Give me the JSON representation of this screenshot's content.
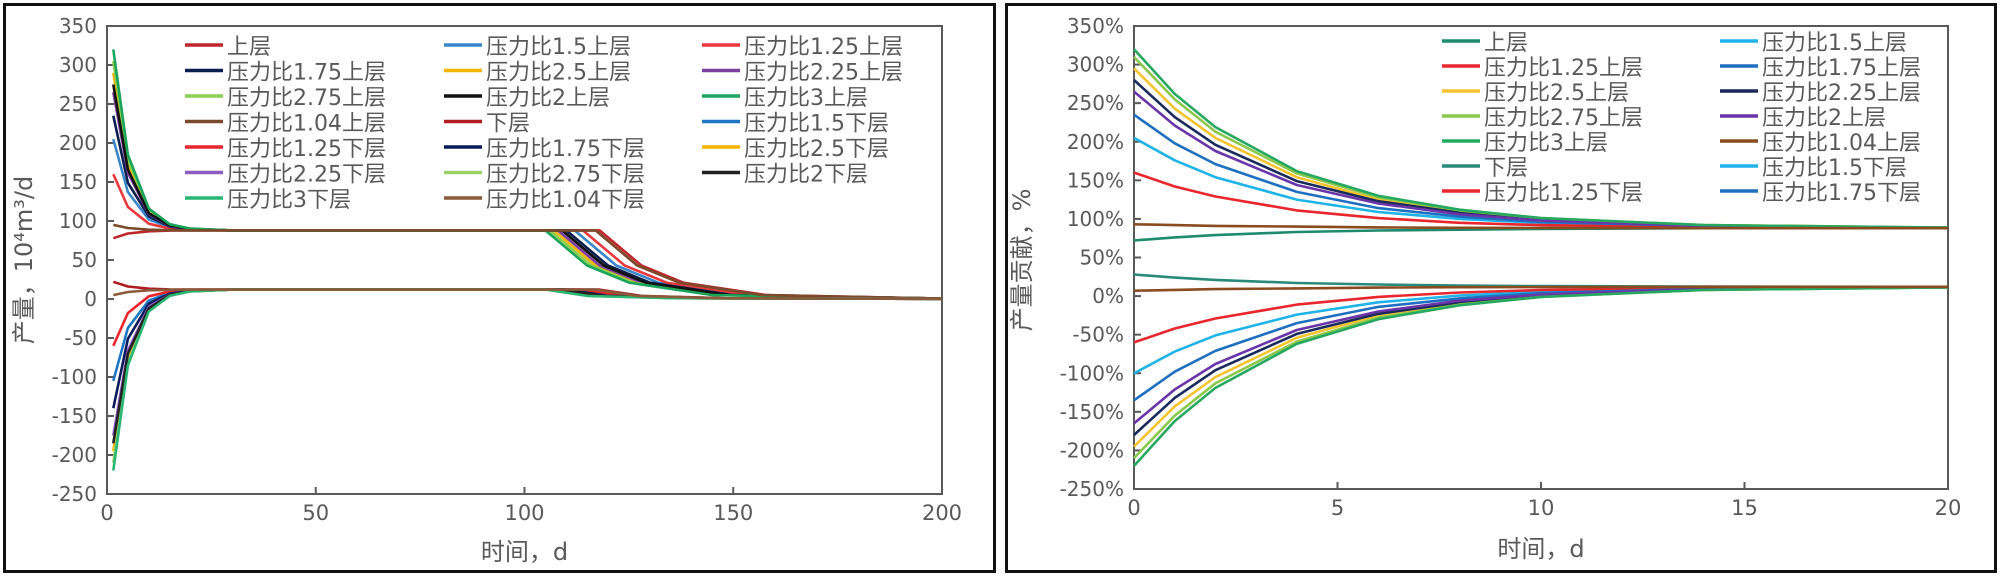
{
  "chart_data": [
    {
      "type": "line",
      "title": "",
      "xlabel": "时间，d",
      "ylabel": "产量，10⁴m³/d",
      "xlim": [
        0,
        200
      ],
      "ylim": [
        -250,
        350
      ],
      "xticks": [
        0,
        50,
        100,
        150,
        200
      ],
      "yticks": [
        -250,
        -200,
        -150,
        -100,
        -50,
        0,
        50,
        100,
        150,
        200,
        250,
        300,
        350
      ],
      "ytick_suffix": "",
      "grid": false,
      "legend": "top",
      "series": [
        {
          "name": "上层",
          "color": "#c0272d",
          "x": [
            1.5,
            5,
            10,
            15,
            20,
            30,
            118,
            128,
            138,
            158,
            200
          ],
          "y": [
            78,
            84,
            86.8,
            87.7,
            88,
            88,
            88,
            43,
            21,
            5,
            0.5
          ]
        },
        {
          "name": "压力比1.5上层",
          "color": "#3a86c8",
          "x": [
            1.5,
            5,
            10,
            15,
            20,
            30,
            112,
            122,
            132,
            152,
            200
          ],
          "y": [
            205,
            137,
            102,
            92,
            89.2,
            88,
            88,
            43,
            21,
            5,
            0.5
          ]
        },
        {
          "name": "压力比1.25上层",
          "color": "#e8393f",
          "x": [
            1.5,
            5,
            10,
            15,
            20,
            30,
            114,
            124,
            134,
            154,
            200
          ],
          "y": [
            160,
            118,
            96.6,
            90.4,
            88.7,
            88,
            88,
            43,
            21,
            5,
            0.5
          ]
        },
        {
          "name": "压力比1.75上层",
          "color": "#0b1f4f",
          "x": [
            1.5,
            5,
            10,
            15,
            20,
            30,
            110,
            120,
            130,
            150,
            200
          ],
          "y": [
            235,
            149,
            106,
            93,
            89.5,
            88,
            88,
            43,
            21,
            5,
            0.5
          ]
        },
        {
          "name": "压力比2.5上层",
          "color": "#f2b705",
          "x": [
            1.5,
            5,
            10,
            15,
            20,
            30,
            107,
            117,
            127,
            147,
            200
          ],
          "y": [
            290,
            172,
            112,
            94.9,
            90,
            88,
            88,
            43,
            21,
            5,
            0.5
          ]
        },
        {
          "name": "压力比2.25上层",
          "color": "#7b3fa0",
          "x": [
            1.5,
            5,
            10,
            15,
            20,
            30,
            108,
            118,
            128,
            148,
            200
          ],
          "y": [
            265,
            162,
            109,
            94,
            89.8,
            88,
            88,
            43,
            21,
            5,
            0.5
          ]
        },
        {
          "name": "压力比2.75上层",
          "color": "#8ccf4d",
          "x": [
            1.5,
            5,
            10,
            15,
            20,
            30,
            106,
            116,
            126,
            146,
            200
          ],
          "y": [
            305,
            178,
            114,
            95.4,
            90.2,
            88,
            88,
            43,
            21,
            5,
            0.5
          ]
        },
        {
          "name": "压力比2上层",
          "color": "#111111",
          "x": [
            1.5,
            5,
            10,
            15,
            20,
            30,
            109,
            119,
            129,
            149,
            200
          ],
          "y": [
            275,
            166,
            110,
            94.4,
            89.9,
            88,
            88,
            43,
            21,
            5,
            0.5
          ]
        },
        {
          "name": "压力比3上层",
          "color": "#1aa35a",
          "x": [
            1.5,
            5,
            10,
            15,
            20,
            30,
            105,
            115,
            125,
            145,
            200
          ],
          "y": [
            320,
            185,
            116,
            95.9,
            90.3,
            88,
            88,
            43,
            21,
            5,
            0.5
          ]
        },
        {
          "name": "压力比1.04上层",
          "color": "#7b4a2a",
          "x": [
            1.5,
            5,
            10,
            15,
            20,
            30,
            117,
            127,
            137,
            157,
            200
          ],
          "y": [
            95,
            91,
            88.8,
            88.2,
            88,
            88,
            88,
            43,
            21,
            5,
            0.5
          ]
        },
        {
          "name": "下层",
          "color": "#b01c22",
          "x": [
            1.5,
            5,
            10,
            15,
            20,
            30,
            118,
            128,
            148,
            200
          ],
          "y": [
            22,
            16,
            13.2,
            12.3,
            12,
            12,
            12,
            4,
            1,
            0.3
          ]
        },
        {
          "name": "压力比1.5下层",
          "color": "#1f77c4",
          "x": [
            1.5,
            5,
            10,
            15,
            20,
            30,
            112,
            122,
            142,
            200
          ],
          "y": [
            -105,
            -37,
            -2,
            8,
            10.8,
            12,
            12,
            4,
            1,
            0.3
          ]
        },
        {
          "name": "压力比1.25下层",
          "color": "#e8262d",
          "x": [
            1.5,
            5,
            10,
            15,
            20,
            30,
            114,
            124,
            144,
            200
          ],
          "y": [
            -60,
            -18,
            3.4,
            9.6,
            11.3,
            12,
            12,
            4,
            1,
            0.3
          ]
        },
        {
          "name": "压力比1.75下层",
          "color": "#0a1a5a",
          "x": [
            1.5,
            5,
            10,
            15,
            20,
            30,
            110,
            120,
            140,
            200
          ],
          "y": [
            -140,
            -51,
            -6,
            6.8,
            10.5,
            12,
            12,
            4,
            1,
            0.3
          ]
        },
        {
          "name": "压力比2.5下层",
          "color": "#f4b400",
          "x": [
            1.5,
            5,
            10,
            15,
            20,
            30,
            107,
            117,
            137,
            200
          ],
          "y": [
            -195,
            -74,
            -13,
            5,
            10,
            12,
            12,
            4,
            1,
            0.3
          ]
        },
        {
          "name": "压力比2.25下层",
          "color": "#8d5cc0",
          "x": [
            1.5,
            5,
            10,
            15,
            20,
            30,
            108,
            118,
            138,
            200
          ],
          "y": [
            -175,
            -66,
            -10,
            5.6,
            10.1,
            12,
            12,
            4,
            1,
            0.3
          ]
        },
        {
          "name": "压力比2.75下层",
          "color": "#9bd16b",
          "x": [
            1.5,
            5,
            10,
            15,
            20,
            30,
            106,
            116,
            136,
            200
          ],
          "y": [
            -210,
            -81,
            -15,
            4.5,
            9.8,
            12,
            12,
            4,
            1,
            0.3
          ]
        },
        {
          "name": "压力比2下层",
          "color": "#222222",
          "x": [
            1.5,
            5,
            10,
            15,
            20,
            30,
            109,
            119,
            139,
            200
          ],
          "y": [
            -185,
            -70,
            -12,
            5.3,
            10,
            12,
            12,
            4,
            1,
            0.3
          ]
        },
        {
          "name": "压力比3下层",
          "color": "#2bb673",
          "x": [
            1.5,
            5,
            10,
            15,
            20,
            30,
            105,
            115,
            135,
            200
          ],
          "y": [
            -220,
            -85,
            -16,
            4,
            9.7,
            12,
            12,
            4,
            1,
            0.3
          ]
        },
        {
          "name": "压力比1.04下层",
          "color": "#8a5a3a",
          "x": [
            1.5,
            5,
            10,
            15,
            20,
            30,
            117,
            127,
            147,
            200
          ],
          "y": [
            5,
            9,
            11.2,
            11.8,
            12,
            12,
            12,
            4,
            1,
            0.3
          ]
        }
      ]
    },
    {
      "type": "line",
      "title": "",
      "xlabel": "时间，d",
      "ylabel": "产量贡献，%",
      "xlim": [
        0,
        20
      ],
      "ylim": [
        -250,
        350
      ],
      "xticks": [
        0,
        5,
        10,
        15,
        20
      ],
      "yticks": [
        -250,
        -200,
        -150,
        -100,
        -50,
        0,
        50,
        100,
        150,
        200,
        250,
        300,
        350
      ],
      "ytick_suffix": "%",
      "grid": false,
      "legend": "top-right",
      "series": [
        {
          "name": "上层",
          "color": "#1e8a6e",
          "x": [
            0,
            1,
            2,
            4,
            6,
            8,
            10,
            14,
            20
          ],
          "y": [
            72,
            76,
            79,
            83,
            85,
            86,
            87,
            88,
            88
          ]
        },
        {
          "name": "压力比1.5上层",
          "color": "#1fb3e8",
          "x": [
            0,
            1,
            2,
            4,
            6,
            8,
            10,
            14,
            20
          ],
          "y": [
            205,
            176,
            154,
            125,
            109,
            100,
            95,
            90,
            88.4
          ]
        },
        {
          "name": "压力比1.25上层",
          "color": "#e8262d",
          "x": [
            0,
            1,
            2,
            4,
            6,
            8,
            10,
            14,
            20
          ],
          "y": [
            160,
            142,
            129,
            111,
            101,
            95,
            92,
            89,
            88.2
          ]
        },
        {
          "name": "压力比1.75上层",
          "color": "#1f6fc0",
          "x": [
            0,
            1,
            2,
            4,
            6,
            8,
            10,
            14,
            20
          ],
          "y": [
            235,
            198,
            171,
            135,
            114,
            103,
            96,
            91,
            88.4
          ]
        },
        {
          "name": "压力比2.5上层",
          "color": "#f4c430",
          "x": [
            0,
            1,
            2,
            4,
            6,
            8,
            10,
            14,
            20
          ],
          "y": [
            295,
            243,
            205,
            154,
            125,
            109,
            100,
            92,
            88.6
          ]
        },
        {
          "name": "压力比2.25上层",
          "color": "#1a2a5a",
          "x": [
            0,
            1,
            2,
            4,
            6,
            8,
            10,
            14,
            20
          ],
          "y": [
            280,
            232,
            196,
            149,
            123,
            108,
            99,
            91,
            88.6
          ]
        },
        {
          "name": "压力比2.75上层",
          "color": "#8cc84b",
          "x": [
            0,
            1,
            2,
            4,
            6,
            8,
            10,
            14,
            20
          ],
          "y": [
            310,
            255,
            213,
            159,
            128,
            111,
            101,
            92,
            88.7
          ]
        },
        {
          "name": "压力比2上层",
          "color": "#6a35a8",
          "x": [
            0,
            1,
            2,
            4,
            6,
            8,
            10,
            14,
            20
          ],
          "y": [
            265,
            221,
            188,
            144,
            120,
            106,
            98,
            91,
            88.5
          ]
        },
        {
          "name": "压力比3上层",
          "color": "#27a860",
          "x": [
            0,
            1,
            2,
            4,
            6,
            8,
            10,
            14,
            20
          ],
          "y": [
            320,
            262,
            219,
            162,
            130,
            112,
            101,
            92,
            88.7
          ]
        },
        {
          "name": "压力比1.04上层",
          "color": "#8a4b1f",
          "x": [
            0,
            1,
            2,
            4,
            6,
            8,
            10,
            14,
            20
          ],
          "y": [
            93,
            92,
            91,
            90,
            89,
            88.5,
            88.3,
            88,
            88
          ]
        },
        {
          "name": "下层",
          "color": "#2a8a7a",
          "x": [
            0,
            1,
            2,
            4,
            6,
            8,
            10,
            14,
            20
          ],
          "y": [
            28,
            24,
            21,
            17,
            15,
            13.6,
            12.9,
            12.3,
            12
          ]
        },
        {
          "name": "压力比1.5下层",
          "color": "#1fb3e8",
          "x": [
            0,
            1,
            2,
            4,
            6,
            8,
            10,
            14,
            20
          ],
          "y": [
            -100,
            -72,
            -51,
            -24,
            -8,
            0.6,
            5.6,
            10,
            11.7
          ]
        },
        {
          "name": "压力比1.25下层",
          "color": "#e8262d",
          "x": [
            0,
            1,
            2,
            4,
            6,
            8,
            10,
            14,
            20
          ],
          "y": [
            -60,
            -42,
            -29,
            -11,
            -1,
            4.7,
            7.9,
            10.7,
            11.8
          ]
        },
        {
          "name": "压力比1.75下层",
          "color": "#1f6fc0",
          "x": [
            0,
            1,
            2,
            4,
            6,
            8,
            10,
            14,
            20
          ],
          "y": [
            -135,
            -98,
            -71,
            -35,
            -14,
            -3,
            4,
            9.4,
            11.6
          ]
        },
        {
          "color": "#f4c430",
          "x": [
            0,
            1,
            2,
            4,
            6,
            8,
            10,
            14,
            20
          ],
          "y": [
            -195,
            -143,
            -105,
            -54,
            -25,
            -9,
            0,
            8,
            11.4
          ]
        },
        {
          "color": "#1a2a5a",
          "x": [
            0,
            1,
            2,
            4,
            6,
            8,
            10,
            14,
            20
          ],
          "y": [
            -180,
            -132,
            -96,
            -49,
            -23,
            -8,
            1,
            8.5,
            11.4
          ]
        },
        {
          "color": "#8cc84b",
          "x": [
            0,
            1,
            2,
            4,
            6,
            8,
            10,
            14,
            20
          ],
          "y": [
            -210,
            -155,
            -113,
            -59,
            -28,
            -11,
            -1,
            8,
            11.3
          ]
        },
        {
          "color": "#6a35a8",
          "x": [
            0,
            1,
            2,
            4,
            6,
            8,
            10,
            14,
            20
          ],
          "y": [
            -165,
            -121,
            -88,
            -44,
            -20,
            -6,
            2,
            9,
            11.5
          ]
        },
        {
          "color": "#27a860",
          "x": [
            0,
            1,
            2,
            4,
            6,
            8,
            10,
            14,
            20
          ],
          "y": [
            -220,
            -162,
            -119,
            -62,
            -30,
            -12,
            -1,
            8,
            11.3
          ]
        },
        {
          "color": "#8a4b1f",
          "x": [
            0,
            1,
            2,
            4,
            6,
            8,
            10,
            14,
            20
          ],
          "y": [
            7,
            8,
            9,
            10,
            11,
            11.5,
            11.7,
            12,
            12
          ]
        }
      ]
    }
  ]
}
